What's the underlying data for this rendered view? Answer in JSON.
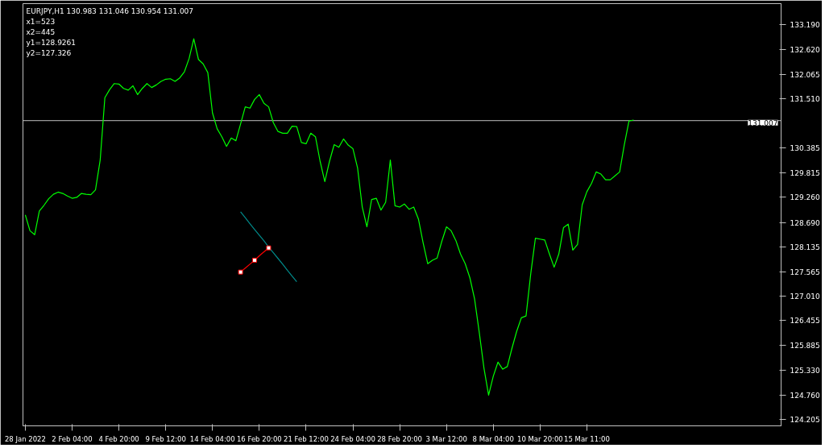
{
  "chart_data": {
    "type": "line",
    "annotations": [
      "EURJPY,H1  130.983 131.046 130.954 131.007",
      "x1=523",
      "x2=445",
      "y1=128.9261",
      "y2=127.326"
    ],
    "categories": [
      "28 Jan 2022",
      null,
      null,
      null,
      null,
      null,
      null,
      null,
      null,
      null,
      "2 Feb 04:00",
      null,
      null,
      null,
      null,
      null,
      null,
      null,
      null,
      null,
      "4 Feb 20:00",
      null,
      null,
      null,
      null,
      null,
      null,
      null,
      null,
      null,
      "9 Feb 12:00",
      null,
      null,
      null,
      null,
      null,
      null,
      null,
      null,
      null,
      "14 Feb 04:00",
      null,
      null,
      null,
      null,
      null,
      null,
      null,
      null,
      null,
      "16 Feb 20:00",
      null,
      null,
      null,
      null,
      null,
      null,
      null,
      null,
      null,
      "21 Feb 12:00",
      null,
      null,
      null,
      null,
      null,
      null,
      null,
      null,
      null,
      "24 Feb 04:00",
      null,
      null,
      null,
      null,
      null,
      null,
      null,
      null,
      null,
      "28 Feb 20:00",
      null,
      null,
      null,
      null,
      null,
      null,
      null,
      null,
      null,
      "3 Mar 12:00",
      null,
      null,
      null,
      null,
      null,
      null,
      null,
      null,
      null,
      "8 Mar 04:00",
      null,
      null,
      null,
      null,
      null,
      null,
      null,
      null,
      null,
      "10 Mar 20:00",
      null,
      null,
      null,
      null,
      null,
      null,
      null,
      null,
      null,
      "15 Mar 11:00",
      null,
      null,
      null,
      null,
      null,
      null,
      null,
      null,
      null,
      null,
      null,
      null,
      null,
      null,
      null,
      null,
      null,
      null,
      null,
      null,
      null,
      null,
      null,
      null,
      null,
      null,
      null,
      null,
      null,
      null,
      null,
      null,
      null,
      null,
      null,
      null,
      null,
      null,
      null,
      null,
      null
    ],
    "ylim": [
      124.06,
      133.67
    ],
    "yticks": [
      {
        "value": 133.19,
        "label": "133.190"
      },
      {
        "value": 132.62,
        "label": "132.620"
      },
      {
        "value": 132.065,
        "label": "132.065"
      },
      {
        "value": 131.51,
        "label": "131.510"
      },
      {
        "value": 130.385,
        "label": "130.385"
      },
      {
        "value": 129.815,
        "label": "129.815"
      },
      {
        "value": 129.26,
        "label": "129.260"
      },
      {
        "value": 128.69,
        "label": "128.690"
      },
      {
        "value": 128.135,
        "label": "128.135"
      },
      {
        "value": 127.565,
        "label": "127.565"
      },
      {
        "value": 127.01,
        "label": "127.010"
      },
      {
        "value": 126.455,
        "label": "126.455"
      },
      {
        "value": 125.885,
        "label": "125.885"
      },
      {
        "value": 125.33,
        "label": "125.330"
      },
      {
        "value": 124.76,
        "label": "124.760"
      },
      {
        "value": 124.205,
        "label": "124.205"
      }
    ],
    "ref_lines": [
      {
        "axis": "y",
        "value": 131.007,
        "label": "131.007",
        "color": "#c0c0c0"
      }
    ],
    "series": [
      {
        "color": "#00ff00",
        "values": [
          128.86,
          128.5,
          128.41,
          128.95,
          129.08,
          129.23,
          129.33,
          129.38,
          129.35,
          129.29,
          129.24,
          129.26,
          129.35,
          129.33,
          129.32,
          129.43,
          130.11,
          131.53,
          131.71,
          131.85,
          131.84,
          131.74,
          131.7,
          131.8,
          131.6,
          131.74,
          131.85,
          131.76,
          131.82,
          131.9,
          131.95,
          131.96,
          131.9,
          131.98,
          132.12,
          132.42,
          132.87,
          132.4,
          132.3,
          132.1,
          131.18,
          130.82,
          130.64,
          130.42,
          130.61,
          130.55,
          130.93,
          131.32,
          131.29,
          131.49,
          131.6,
          131.4,
          131.32,
          130.96,
          130.76,
          130.72,
          130.72,
          130.88,
          130.87,
          130.51,
          130.48,
          130.72,
          130.64,
          130.08,
          129.62,
          130.08,
          130.46,
          130.4,
          130.59,
          130.45,
          130.37,
          129.93,
          129.04,
          128.59,
          129.21,
          129.24,
          128.97,
          129.15,
          130.11,
          129.07,
          129.04,
          129.11,
          128.99,
          129.04,
          128.77,
          128.23,
          127.75,
          127.83,
          127.88,
          128.26,
          128.59,
          128.5,
          128.28,
          127.97,
          127.75,
          127.43,
          126.95,
          126.19,
          125.38,
          124.76,
          125.19,
          125.51,
          125.35,
          125.41,
          125.83,
          126.21,
          126.52,
          126.56,
          127.52,
          128.33,
          128.31,
          128.29,
          127.97,
          127.67,
          127.97,
          128.57,
          128.65,
          128.06,
          128.19,
          129.09,
          129.39,
          129.58,
          129.84,
          129.79,
          129.66,
          129.66,
          129.75,
          129.84,
          130.46,
          131.0,
          131.02,
          null,
          null,
          null,
          null,
          null,
          null,
          null,
          null,
          null,
          null,
          null,
          null,
          null,
          null,
          null,
          null,
          null,
          null,
          null,
          null,
          null,
          null,
          null,
          null,
          null,
          null,
          null,
          null,
          null,
          null,
          null
        ]
      },
      {
        "color": "#008b8b",
        "values": [
          null,
          null,
          null,
          null,
          null,
          null,
          null,
          null,
          null,
          null,
          null,
          null,
          null,
          null,
          null,
          null,
          null,
          null,
          null,
          null,
          null,
          null,
          null,
          null,
          null,
          null,
          null,
          null,
          null,
          null,
          null,
          null,
          null,
          null,
          null,
          null,
          null,
          null,
          null,
          null,
          null,
          null,
          null,
          null,
          null,
          null,
          128.93,
          128.8,
          128.66,
          128.53,
          128.4,
          128.27,
          128.13,
          128.0,
          127.87,
          127.74,
          127.6,
          127.47,
          127.34,
          null,
          null,
          null,
          null,
          null,
          null,
          null,
          null,
          null,
          null,
          null,
          null,
          null,
          null,
          null,
          null,
          null,
          null,
          null,
          null,
          null,
          null,
          null,
          null,
          null,
          null,
          null,
          null,
          null,
          null,
          null,
          null,
          null,
          null,
          null,
          null,
          null,
          null,
          null,
          null,
          null,
          null,
          null,
          null,
          null,
          null,
          null,
          null,
          null,
          null,
          null,
          null,
          null,
          null,
          null,
          null,
          null,
          null,
          null,
          null,
          null,
          null,
          null,
          null,
          null,
          null,
          null,
          null,
          null,
          null,
          null,
          null,
          null,
          null,
          null,
          null,
          null,
          null,
          null,
          null,
          null,
          null,
          null,
          null,
          null,
          null,
          null,
          null,
          null,
          null,
          null,
          null,
          null,
          null,
          null,
          null,
          null,
          null,
          null,
          null,
          null,
          null,
          null
        ]
      },
      {
        "color": "#ff0000",
        "values": [
          null,
          null,
          null,
          null,
          null,
          null,
          null,
          null,
          null,
          null,
          null,
          null,
          null,
          null,
          null,
          null,
          null,
          null,
          null,
          null,
          null,
          null,
          null,
          null,
          null,
          null,
          null,
          null,
          null,
          null,
          null,
          null,
          null,
          null,
          null,
          null,
          null,
          null,
          null,
          null,
          null,
          null,
          null,
          null,
          null,
          null,
          127.56,
          127.65,
          127.74,
          127.83,
          127.93,
          128.02,
          128.11,
          null,
          null,
          null,
          null,
          null,
          null,
          null,
          null,
          null,
          null,
          null,
          null,
          null,
          null,
          null,
          null,
          null,
          null,
          null,
          null,
          null,
          null,
          null,
          null,
          null,
          null,
          null,
          null,
          null,
          null,
          null,
          null,
          null,
          null,
          null,
          null,
          null,
          null,
          null,
          null,
          null,
          null,
          null,
          null,
          null,
          null,
          null,
          null,
          null,
          null,
          null,
          null,
          null,
          null,
          null,
          null,
          null,
          null,
          null,
          null,
          null,
          null,
          null,
          null,
          null,
          null,
          null,
          null,
          null,
          null,
          null,
          null,
          null,
          null,
          null,
          null,
          null,
          null,
          null,
          null,
          null,
          null,
          null,
          null,
          null,
          null,
          null,
          null,
          null,
          null,
          null,
          null,
          null,
          null,
          null,
          null,
          null,
          null,
          null,
          null,
          null,
          null,
          null,
          null,
          null,
          null,
          null,
          null,
          null
        ]
      },
      {
        "type": "scatter",
        "color": "#ff0000",
        "marker": "square",
        "values": [
          null,
          null,
          null,
          null,
          null,
          null,
          null,
          null,
          null,
          null,
          null,
          null,
          null,
          null,
          null,
          null,
          null,
          null,
          null,
          null,
          null,
          null,
          null,
          null,
          null,
          null,
          null,
          null,
          null,
          null,
          null,
          null,
          null,
          null,
          null,
          null,
          null,
          null,
          null,
          null,
          null,
          null,
          null,
          null,
          null,
          null,
          127.56,
          null,
          null,
          127.83,
          null,
          null,
          128.11,
          null,
          null,
          null,
          null,
          null,
          null,
          null,
          null,
          null,
          null,
          null,
          null,
          null,
          null,
          null,
          null,
          null,
          null,
          null,
          null,
          null,
          null,
          null,
          null,
          null,
          null,
          null,
          null,
          null,
          null,
          null,
          null,
          null,
          null,
          null,
          null,
          null,
          null,
          null,
          null,
          null,
          null,
          null,
          null,
          null,
          null,
          null,
          null,
          null,
          null,
          null,
          null,
          null,
          null,
          null,
          null,
          null,
          null,
          null,
          null,
          null,
          null,
          null,
          null,
          null,
          null,
          null,
          null,
          null,
          null,
          null,
          null,
          null,
          null,
          null,
          null,
          null,
          null,
          null,
          null,
          null,
          null,
          null,
          null,
          null,
          null,
          null,
          null,
          null,
          null,
          null,
          null,
          null,
          null,
          null,
          null,
          null,
          null,
          null,
          null,
          null,
          null,
          null,
          null,
          null,
          null,
          null,
          null,
          null
        ]
      }
    ]
  }
}
